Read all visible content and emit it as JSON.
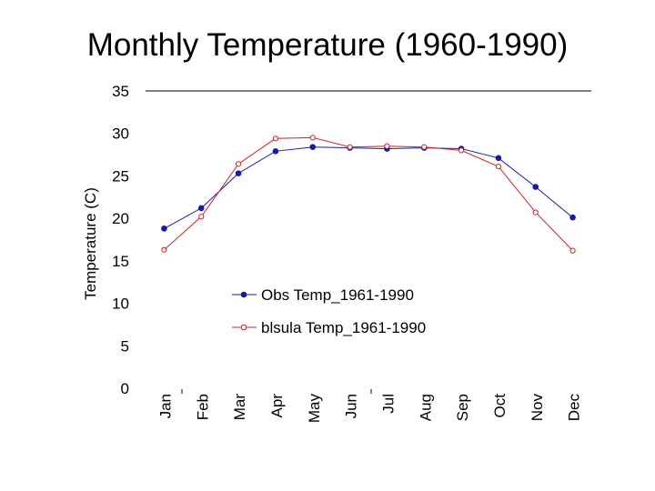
{
  "chart_data": {
    "type": "line",
    "title": "Monthly Temperature (1960-1990)",
    "xlabel": "",
    "ylabel": "Temperature (C)",
    "categories": [
      "Jan",
      "Feb",
      "Mar",
      "Apr",
      "May",
      "Jun",
      "Jul",
      "Aug",
      "Sep",
      "Oct",
      "Nov",
      "Dec"
    ],
    "ylim": [
      0,
      35
    ],
    "yticks": [
      0,
      5,
      10,
      15,
      20,
      25,
      30,
      35
    ],
    "grid": false,
    "legend_position": "center-right",
    "series": [
      {
        "name": "Obs Temp_1961-1990",
        "color": "#1a1aa0",
        "marker": "filled-circle",
        "values": [
          18.8,
          21.2,
          25.3,
          27.9,
          28.4,
          28.3,
          28.2,
          28.3,
          28.2,
          27.1,
          23.7,
          20.1
        ]
      },
      {
        "name": "blsula Temp_1961-1990",
        "color": "#cc2222",
        "marker": "open-circle",
        "values": [
          16.3,
          20.2,
          26.4,
          29.4,
          29.5,
          28.4,
          28.5,
          28.4,
          28.0,
          26.1,
          20.7,
          16.2
        ]
      }
    ]
  }
}
